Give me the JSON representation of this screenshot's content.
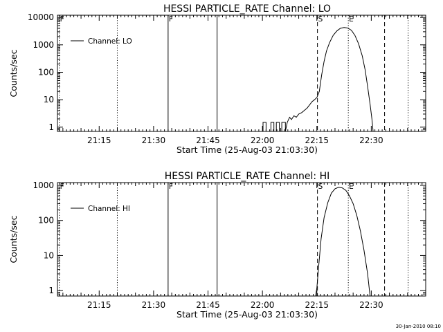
{
  "footer": {
    "date_stamp": "30-Jan-2010 08:10"
  },
  "chart_data": [
    {
      "type": "line",
      "title": "HESSI PARTICLE_RATE Channel: LO",
      "xlabel": "Start Time (25-Aug-03 21:03:30)",
      "ylabel": "Counts/sec",
      "yscale": "log",
      "ylim": [
        0.7,
        12000
      ],
      "xlim": [
        "21:03:30",
        "22:45:00"
      ],
      "x_ticks": [
        "21:15",
        "21:30",
        "21:45",
        "22:00",
        "22:15",
        "22:30"
      ],
      "y_ticks": [
        1,
        10,
        100,
        1000,
        10000
      ],
      "y_tick_labels": [
        "1",
        "10",
        "100",
        "1000",
        "10000"
      ],
      "legend": {
        "position": "top-left",
        "entries": [
          "Channel: LO"
        ]
      },
      "series": [
        {
          "name": "Channel: LO",
          "points": [
            [
              "22:00:10",
              0.7
            ],
            [
              "22:00:10",
              1.5
            ],
            [
              "22:01:00",
              1.5
            ],
            [
              "22:01:00",
              0.7
            ],
            [
              "22:02:20",
              0.7
            ],
            [
              "22:02:20",
              1.5
            ],
            [
              "22:03:10",
              1.5
            ],
            [
              "22:03:10",
              0.7
            ],
            [
              "22:03:50",
              0.7
            ],
            [
              "22:03:50",
              1.5
            ],
            [
              "22:04:40",
              1.5
            ],
            [
              "22:04:40",
              0.7
            ],
            [
              "22:05:20",
              0.7
            ],
            [
              "22:05:20",
              1.5
            ],
            [
              "22:06:20",
              1.5
            ],
            [
              "22:06:20",
              0.7
            ],
            [
              "22:06:50",
              1.5
            ],
            [
              "22:07:30",
              2.3
            ],
            [
              "22:08:00",
              1.9
            ],
            [
              "22:08:40",
              2.6
            ],
            [
              "22:09:20",
              2.3
            ],
            [
              "22:10:00",
              3.0
            ],
            [
              "22:10:50",
              3.4
            ],
            [
              "22:11:40",
              4.2
            ],
            [
              "22:12:20",
              5.0
            ],
            [
              "22:13:00",
              6.5
            ],
            [
              "22:13:40",
              8.5
            ],
            [
              "22:14:20",
              10
            ],
            [
              "22:15:00",
              12
            ],
            [
              "22:15:40",
              20
            ],
            [
              "22:16:20",
              80
            ],
            [
              "22:17:00",
              250
            ],
            [
              "22:17:40",
              600
            ],
            [
              "22:18:30",
              1200
            ],
            [
              "22:19:30",
              2200
            ],
            [
              "22:20:30",
              3200
            ],
            [
              "22:21:30",
              4000
            ],
            [
              "22:22:30",
              4300
            ],
            [
              "22:23:30",
              4100
            ],
            [
              "22:24:30",
              3400
            ],
            [
              "22:25:30",
              2200
            ],
            [
              "22:26:30",
              1100
            ],
            [
              "22:27:30",
              400
            ],
            [
              "22:28:20",
              120
            ],
            [
              "22:29:00",
              30
            ],
            [
              "22:29:40",
              7
            ],
            [
              "22:30:10",
              2
            ],
            [
              "22:30:30",
              0.7
            ]
          ]
        }
      ],
      "markers": [
        {
          "label": "F",
          "time": "21:04:00",
          "style": "dotted"
        },
        {
          "label": "",
          "time": "21:20:00",
          "style": "dotted"
        },
        {
          "label": "F",
          "time": "21:34:00",
          "style": "solid"
        },
        {
          "label": "",
          "time": "21:47:30",
          "style": "solid"
        },
        {
          "label": "S",
          "time": "22:15:10",
          "style": "dashed"
        },
        {
          "label": "E",
          "time": "22:23:40",
          "style": "dotted"
        },
        {
          "label": "",
          "time": "22:33:40",
          "style": "dashed"
        },
        {
          "label": "",
          "time": "22:40:10",
          "style": "dotted"
        }
      ]
    },
    {
      "type": "line",
      "title": "HESSI PARTICLE_RATE Channel: HI",
      "xlabel": "Start Time (25-Aug-03 21:03:30)",
      "ylabel": "Counts/sec",
      "yscale": "log",
      "ylim": [
        0.7,
        1200
      ],
      "xlim": [
        "21:03:30",
        "22:45:00"
      ],
      "x_ticks": [
        "21:15",
        "21:30",
        "21:45",
        "22:00",
        "22:15",
        "22:30"
      ],
      "y_ticks": [
        1,
        10,
        100,
        1000
      ],
      "y_tick_labels": [
        "1",
        "10",
        "100",
        "1000"
      ],
      "legend": {
        "position": "top-left",
        "entries": [
          "Channel: HI"
        ]
      },
      "series": [
        {
          "name": "Channel: HI",
          "points": [
            [
              "22:14:40",
              0.7
            ],
            [
              "22:15:00",
              1.2
            ],
            [
              "22:15:30",
              5
            ],
            [
              "22:16:10",
              30
            ],
            [
              "22:17:00",
              120
            ],
            [
              "22:18:00",
              320
            ],
            [
              "22:19:00",
              600
            ],
            [
              "22:20:00",
              800
            ],
            [
              "22:21:00",
              880
            ],
            [
              "22:22:00",
              850
            ],
            [
              "22:23:00",
              720
            ],
            [
              "22:24:00",
              500
            ],
            [
              "22:25:00",
              300
            ],
            [
              "22:26:00",
              140
            ],
            [
              "22:27:00",
              50
            ],
            [
              "22:28:00",
              14
            ],
            [
              "22:29:00",
              3
            ],
            [
              "22:29:40",
              0.7
            ]
          ]
        }
      ],
      "markers": [
        {
          "label": "F",
          "time": "21:04:00",
          "style": "dotted"
        },
        {
          "label": "",
          "time": "21:20:00",
          "style": "dotted"
        },
        {
          "label": "F",
          "time": "21:34:00",
          "style": "solid"
        },
        {
          "label": "",
          "time": "21:47:30",
          "style": "solid"
        },
        {
          "label": "S",
          "time": "22:15:10",
          "style": "dashed"
        },
        {
          "label": "E",
          "time": "22:23:40",
          "style": "dotted"
        },
        {
          "label": "",
          "time": "22:33:40",
          "style": "dashed"
        },
        {
          "label": "",
          "time": "22:40:10",
          "style": "dotted"
        }
      ]
    }
  ]
}
